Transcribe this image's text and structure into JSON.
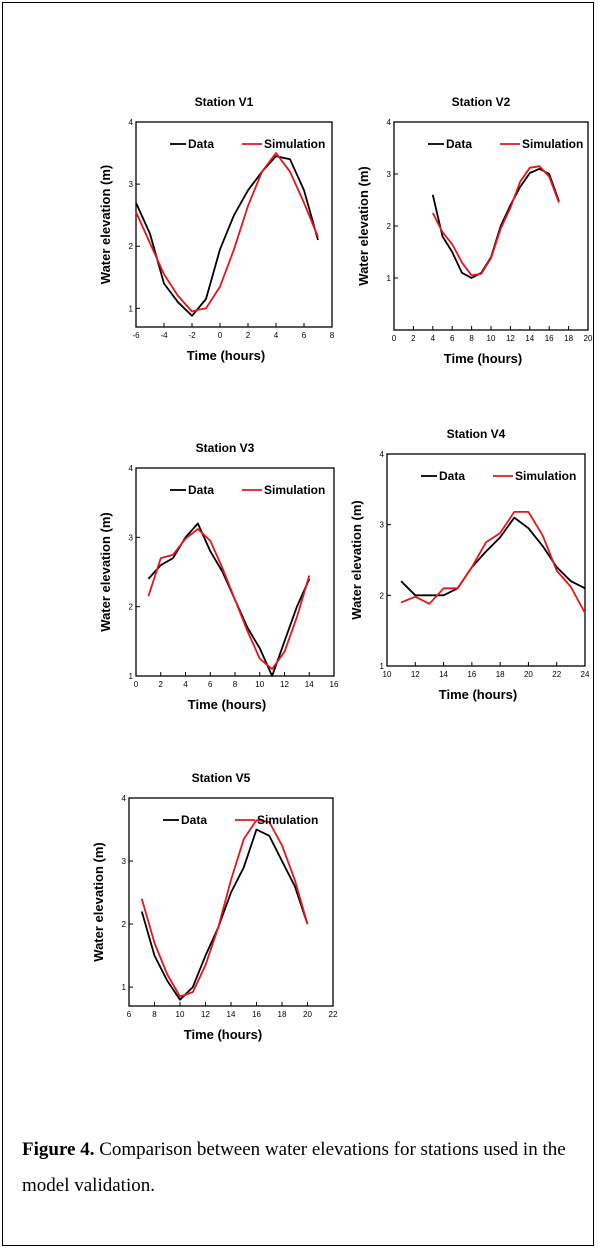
{
  "caption": {
    "label": "Figure 4.",
    "text": " Comparison between water elevations for stations used in the model validation."
  },
  "colors": {
    "data": "#000000",
    "simulation": "#e8141b"
  },
  "chart_data": [
    {
      "type": "line",
      "title": "Station V1",
      "xlabel": "Time (hours)",
      "ylabel": "Water elevation (m)",
      "xlim": [
        -6,
        8
      ],
      "ylim": [
        0.7,
        4
      ],
      "xticks": [
        -6,
        -4,
        -2,
        0,
        2,
        4,
        6,
        8
      ],
      "yticks": [
        1,
        2,
        3,
        4
      ],
      "legend": "top-right",
      "series": [
        {
          "name": "Data",
          "color": "#000000",
          "x": [
            -6,
            -5,
            -4,
            -3,
            -2,
            -1,
            0,
            1,
            2,
            3,
            4,
            5,
            6,
            7
          ],
          "y": [
            2.7,
            2.2,
            1.4,
            1.1,
            0.88,
            1.15,
            1.95,
            2.5,
            2.9,
            3.2,
            3.45,
            3.4,
            2.9,
            2.1
          ]
        },
        {
          "name": "Simulation",
          "color": "#e8141b",
          "x": [
            -6,
            -5,
            -4,
            -3,
            -2,
            -1.5,
            -1,
            0,
            1,
            2,
            3,
            4,
            5,
            6,
            7
          ],
          "y": [
            2.55,
            2.05,
            1.55,
            1.2,
            0.95,
            0.98,
            1.0,
            1.35,
            1.95,
            2.65,
            3.2,
            3.5,
            3.2,
            2.7,
            2.15
          ]
        }
      ]
    },
    {
      "type": "line",
      "title": "Station V2",
      "xlabel": "Time (hours)",
      "ylabel": "Water elevation (m)",
      "xlim": [
        0,
        20
      ],
      "ylim": [
        0,
        4
      ],
      "yrange": [
        0.9,
        4
      ],
      "xticks": [
        0,
        2,
        4,
        6,
        8,
        10,
        12,
        14,
        16,
        18,
        20
      ],
      "yticks": [
        1,
        2,
        3,
        4
      ],
      "legend": "top-right",
      "series": [
        {
          "name": "Data",
          "color": "#000000",
          "x": [
            4,
            5,
            6,
            7,
            8,
            9,
            10,
            11,
            12,
            13,
            14,
            15,
            16,
            17
          ],
          "y": [
            2.6,
            1.8,
            1.5,
            1.1,
            1.0,
            1.1,
            1.4,
            2.0,
            2.4,
            2.75,
            3.02,
            3.1,
            3.0,
            2.48
          ]
        },
        {
          "name": "Simulation",
          "color": "#e8141b",
          "x": [
            4,
            5,
            6,
            7,
            8,
            9,
            10,
            11,
            12,
            13,
            14,
            15,
            16,
            17
          ],
          "y": [
            2.25,
            1.88,
            1.65,
            1.3,
            1.05,
            1.08,
            1.38,
            1.95,
            2.35,
            2.85,
            3.12,
            3.15,
            2.95,
            2.45
          ]
        }
      ]
    },
    {
      "type": "line",
      "title": "Station V3",
      "xlabel": "Time (hours)",
      "ylabel": "Water elevation (m)",
      "xlim": [
        0,
        16
      ],
      "ylim": [
        1,
        4
      ],
      "xticks": [
        0,
        2,
        4,
        6,
        8,
        10,
        12,
        14,
        16
      ],
      "yticks": [
        1,
        2,
        3,
        4
      ],
      "legend": "top-right",
      "series": [
        {
          "name": "Data",
          "color": "#000000",
          "x": [
            1,
            2,
            3,
            4,
            5,
            6,
            7,
            8,
            9,
            10,
            11,
            12,
            13,
            14
          ],
          "y": [
            2.4,
            2.6,
            2.7,
            3.0,
            3.2,
            2.8,
            2.5,
            2.1,
            1.7,
            1.4,
            1.0,
            1.5,
            2.0,
            2.4
          ]
        },
        {
          "name": "Simulation",
          "color": "#e8141b",
          "x": [
            1,
            2,
            3,
            4,
            5,
            6,
            7,
            8,
            9,
            10,
            11,
            12,
            13,
            14
          ],
          "y": [
            2.15,
            2.7,
            2.75,
            2.98,
            3.12,
            2.95,
            2.55,
            2.1,
            1.65,
            1.25,
            1.1,
            1.35,
            1.85,
            2.45
          ]
        }
      ]
    },
    {
      "type": "line",
      "title": "Station V4",
      "xlabel": "Time (hours)",
      "ylabel": "Water elevation (m)",
      "xlim": [
        10,
        24
      ],
      "ylim": [
        1,
        4
      ],
      "xticks": [
        10,
        12,
        14,
        16,
        18,
        20,
        22,
        24
      ],
      "yticks": [
        1,
        2,
        3,
        4
      ],
      "legend": "top-right",
      "series": [
        {
          "name": "Data",
          "color": "#000000",
          "x": [
            11,
            12,
            13,
            14,
            15,
            16,
            17,
            18,
            19,
            20,
            21,
            22,
            23,
            24
          ],
          "y": [
            2.2,
            2.0,
            2.0,
            2.0,
            2.1,
            2.4,
            2.62,
            2.82,
            3.1,
            2.95,
            2.7,
            2.4,
            2.2,
            2.1
          ]
        },
        {
          "name": "Simulation",
          "color": "#e8141b",
          "x": [
            11,
            12,
            13,
            14,
            15,
            16,
            17,
            18,
            19,
            20,
            21,
            22,
            23,
            24
          ],
          "y": [
            1.9,
            1.98,
            1.88,
            2.1,
            2.1,
            2.4,
            2.75,
            2.88,
            3.18,
            3.18,
            2.85,
            2.35,
            2.12,
            1.75
          ]
        }
      ]
    },
    {
      "type": "line",
      "title": "Station V5",
      "xlabel": "Time (hours)",
      "ylabel": "Water elevation (m)",
      "xlim": [
        6,
        22
      ],
      "ylim": [
        0.7,
        4
      ],
      "xticks": [
        6,
        8,
        10,
        12,
        14,
        16,
        18,
        20,
        22
      ],
      "yticks": [
        1,
        2,
        3,
        4
      ],
      "legend": "top-right",
      "series": [
        {
          "name": "Data",
          "color": "#000000",
          "x": [
            7,
            8,
            9,
            10,
            11,
            12,
            13,
            14,
            15,
            16,
            17,
            18,
            19,
            20
          ],
          "y": [
            2.2,
            1.5,
            1.1,
            0.8,
            1.0,
            1.5,
            1.95,
            2.5,
            2.9,
            3.5,
            3.4,
            3.0,
            2.6,
            2.0
          ]
        },
        {
          "name": "Simulation",
          "color": "#e8141b",
          "x": [
            7,
            8,
            9,
            10,
            11,
            12,
            13,
            14,
            15,
            16,
            17,
            18,
            19,
            20
          ],
          "y": [
            2.4,
            1.7,
            1.2,
            0.85,
            0.92,
            1.35,
            1.95,
            2.7,
            3.35,
            3.65,
            3.62,
            3.25,
            2.7,
            2.0
          ]
        }
      ]
    }
  ]
}
